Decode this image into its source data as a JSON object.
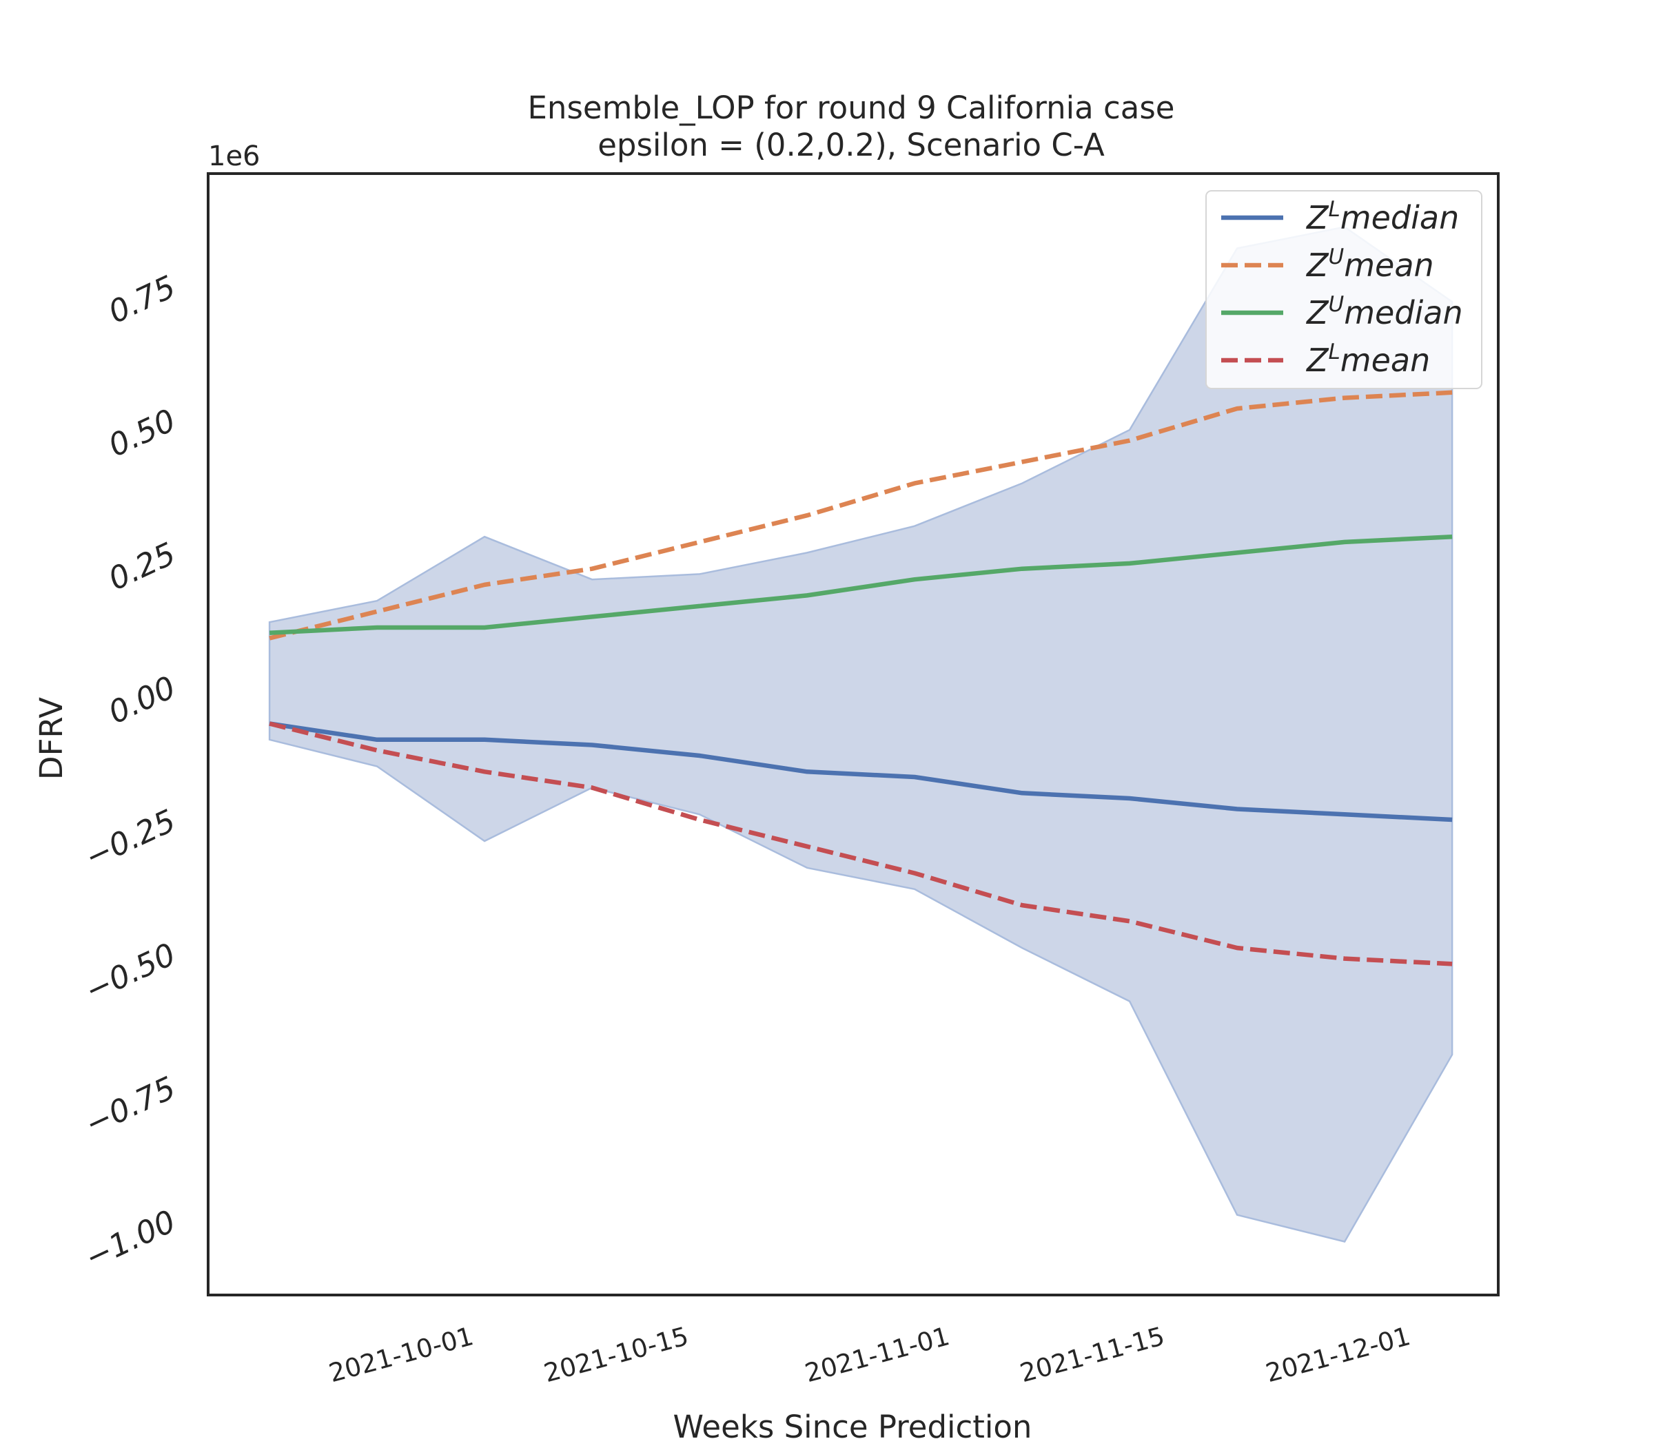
{
  "chart_data": {
    "type": "line",
    "title_line1": "Ensemble_LOP for round 9 California  case",
    "title_line2": "epsilon = (0.2,0.2), Scenario C-A",
    "xlabel": "Weeks Since Prediction",
    "ylabel": "DFRV",
    "y_offset_label": "1e6",
    "y_scale": 1000000,
    "ylim": [
      -1.14,
      0.96
    ],
    "xlim": [
      "2021-09-14",
      "2021-12-07"
    ],
    "x_tick_labels": [
      "2021-10-01",
      "2021-10-15",
      "2021-11-01",
      "2021-11-15",
      "2021-12-01"
    ],
    "y_ticks": [
      0.75,
      0.5,
      0.25,
      0.0,
      -0.25,
      -0.5,
      -0.75,
      -1.0
    ],
    "y_tick_labels": [
      "0.75",
      "0.50",
      "0.25",
      "0.00",
      "−0.25",
      "−0.50",
      "−0.75",
      "−1.00"
    ],
    "x": [
      "2021-09-18",
      "2021-09-25",
      "2021-10-02",
      "2021-10-09",
      "2021-10-16",
      "2021-10-23",
      "2021-10-30",
      "2021-11-06",
      "2021-11-13",
      "2021-11-20",
      "2021-11-27",
      "2021-12-04"
    ],
    "band": {
      "upper": [
        0.12,
        0.16,
        0.28,
        0.2,
        0.21,
        0.25,
        0.3,
        0.38,
        0.48,
        0.82,
        0.86,
        0.72
      ],
      "lower": [
        -0.1,
        -0.15,
        -0.29,
        -0.19,
        -0.24,
        -0.34,
        -0.38,
        -0.49,
        -0.59,
        -0.99,
        -1.04,
        -0.69
      ],
      "color": "#cdd6e8"
    },
    "series": [
      {
        "name_base": "Z",
        "name_sup": "L",
        "name_rest": "median",
        "style": "solid",
        "color": "#4c72b0",
        "values": [
          -0.07,
          -0.1,
          -0.1,
          -0.11,
          -0.13,
          -0.16,
          -0.17,
          -0.2,
          -0.21,
          -0.23,
          -0.24,
          -0.25
        ]
      },
      {
        "name_base": "Z",
        "name_sup": "U",
        "name_rest": "mean",
        "style": "dashed",
        "color": "#dd8452",
        "values": [
          0.09,
          0.14,
          0.19,
          0.22,
          0.27,
          0.32,
          0.38,
          0.42,
          0.46,
          0.52,
          0.54,
          0.55
        ]
      },
      {
        "name_base": "Z",
        "name_sup": "U",
        "name_rest": "median",
        "style": "solid",
        "color": "#55a868",
        "values": [
          0.1,
          0.11,
          0.11,
          0.13,
          0.15,
          0.17,
          0.2,
          0.22,
          0.23,
          0.25,
          0.27,
          0.28
        ]
      },
      {
        "name_base": "Z",
        "name_sup": "L",
        "name_rest": "mean",
        "style": "dashed",
        "color": "#c44e52",
        "values": [
          -0.07,
          -0.12,
          -0.16,
          -0.19,
          -0.25,
          -0.3,
          -0.35,
          -0.41,
          -0.44,
          -0.49,
          -0.51,
          -0.52
        ]
      }
    ],
    "legend_position": "top-right",
    "grid": false
  }
}
